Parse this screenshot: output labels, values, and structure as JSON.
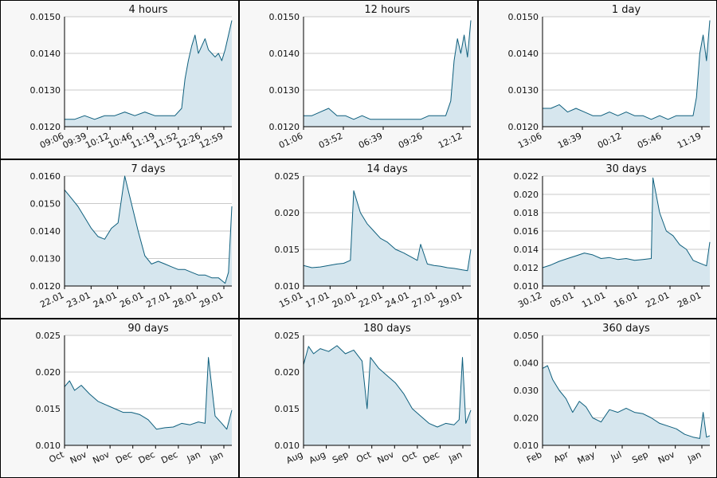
{
  "colors": {
    "line": "#0e5f7d",
    "fill": "#d6e6ee",
    "grid": "#c9c9c9",
    "panel_bg": "#f7f7f7"
  },
  "chart_data": [
    {
      "type": "area",
      "title": "4 hours",
      "ylim": [
        0.012,
        0.015
      ],
      "yticks": [
        0.012,
        0.013,
        0.014,
        0.015
      ],
      "yticklabels": [
        "0.0120",
        "0.0130",
        "0.0140",
        "0.0150"
      ],
      "xticklabels": [
        "09:06",
        "09:39",
        "10:12",
        "10:46",
        "11:19",
        "11:52",
        "12:26",
        "12:59"
      ],
      "grid": true,
      "x": [
        0,
        0.06,
        0.12,
        0.18,
        0.24,
        0.3,
        0.36,
        0.42,
        0.48,
        0.54,
        0.6,
        0.66,
        0.7,
        0.72,
        0.74,
        0.76,
        0.78,
        0.8,
        0.82,
        0.84,
        0.86,
        0.88,
        0.9,
        0.92,
        0.94,
        0.96,
        0.98,
        1.0
      ],
      "y": [
        0.0122,
        0.0122,
        0.0123,
        0.0122,
        0.0123,
        0.0123,
        0.0124,
        0.0123,
        0.0124,
        0.0123,
        0.0123,
        0.0123,
        0.0125,
        0.0133,
        0.0138,
        0.0142,
        0.0145,
        0.014,
        0.0142,
        0.0144,
        0.0141,
        0.014,
        0.0139,
        0.014,
        0.0138,
        0.0141,
        0.0145,
        0.0149
      ]
    },
    {
      "type": "area",
      "title": "12 hours",
      "ylim": [
        0.012,
        0.015
      ],
      "yticks": [
        0.012,
        0.013,
        0.014,
        0.015
      ],
      "yticklabels": [
        "0.0120",
        "0.0130",
        "0.0140",
        "0.0150"
      ],
      "xticklabels": [
        "01:06",
        "03:52",
        "06:39",
        "09:26",
        "12:12"
      ],
      "grid": true,
      "x": [
        0,
        0.05,
        0.1,
        0.15,
        0.2,
        0.25,
        0.3,
        0.35,
        0.4,
        0.45,
        0.5,
        0.55,
        0.6,
        0.65,
        0.7,
        0.75,
        0.8,
        0.85,
        0.88,
        0.9,
        0.92,
        0.94,
        0.96,
        0.98,
        1.0
      ],
      "y": [
        0.0123,
        0.0123,
        0.0124,
        0.0125,
        0.0123,
        0.0123,
        0.0122,
        0.0123,
        0.0122,
        0.0122,
        0.0122,
        0.0122,
        0.0122,
        0.0122,
        0.0122,
        0.0123,
        0.0123,
        0.0123,
        0.0127,
        0.0138,
        0.0144,
        0.014,
        0.0145,
        0.0139,
        0.0149
      ]
    },
    {
      "type": "area",
      "title": "1 day",
      "ylim": [
        0.012,
        0.015
      ],
      "yticks": [
        0.012,
        0.013,
        0.014,
        0.015
      ],
      "yticklabels": [
        "0.0120",
        "0.0130",
        "0.0140",
        "0.0150"
      ],
      "xticklabels": [
        "13:06",
        "18:39",
        "00:12",
        "05:46",
        "11:19"
      ],
      "grid": true,
      "x": [
        0,
        0.05,
        0.1,
        0.15,
        0.2,
        0.25,
        0.3,
        0.35,
        0.4,
        0.45,
        0.5,
        0.55,
        0.6,
        0.65,
        0.7,
        0.75,
        0.8,
        0.85,
        0.9,
        0.92,
        0.94,
        0.96,
        0.98,
        1.0
      ],
      "y": [
        0.0125,
        0.0125,
        0.0126,
        0.0124,
        0.0125,
        0.0124,
        0.0123,
        0.0123,
        0.0124,
        0.0123,
        0.0124,
        0.0123,
        0.0123,
        0.0122,
        0.0123,
        0.0122,
        0.0123,
        0.0123,
        0.0123,
        0.0128,
        0.014,
        0.0145,
        0.0138,
        0.0149
      ]
    },
    {
      "type": "area",
      "title": "7 days",
      "ylim": [
        0.012,
        0.016
      ],
      "yticks": [
        0.012,
        0.013,
        0.014,
        0.015,
        0.016
      ],
      "yticklabels": [
        "0.0120",
        "0.0130",
        "0.0140",
        "0.0150",
        "0.0160"
      ],
      "xticklabels": [
        "22.01",
        "23.01",
        "24.01",
        "26.01",
        "27.01",
        "28.01",
        "29.01"
      ],
      "grid": true,
      "x": [
        0,
        0.04,
        0.08,
        0.12,
        0.16,
        0.2,
        0.24,
        0.28,
        0.32,
        0.36,
        0.4,
        0.44,
        0.48,
        0.52,
        0.56,
        0.6,
        0.64,
        0.68,
        0.72,
        0.76,
        0.8,
        0.84,
        0.88,
        0.92,
        0.94,
        0.96,
        0.98,
        1.0
      ],
      "y": [
        0.0155,
        0.0152,
        0.0149,
        0.0145,
        0.0141,
        0.0138,
        0.0137,
        0.0141,
        0.0143,
        0.016,
        0.015,
        0.014,
        0.0131,
        0.0128,
        0.0129,
        0.0128,
        0.0127,
        0.0126,
        0.0126,
        0.0125,
        0.0124,
        0.0124,
        0.0123,
        0.0123,
        0.0122,
        0.0121,
        0.0125,
        0.0149
      ]
    },
    {
      "type": "area",
      "title": "14 days",
      "ylim": [
        0.01,
        0.025
      ],
      "yticks": [
        0.01,
        0.015,
        0.02,
        0.025
      ],
      "yticklabels": [
        "0.010",
        "0.015",
        "0.020",
        "0.025"
      ],
      "xticklabels": [
        "15.01",
        "17.01",
        "20.01",
        "22.01",
        "24.01",
        "27.01",
        "29.01"
      ],
      "grid": true,
      "x": [
        0,
        0.05,
        0.1,
        0.15,
        0.2,
        0.24,
        0.28,
        0.3,
        0.34,
        0.38,
        0.42,
        0.46,
        0.5,
        0.55,
        0.6,
        0.64,
        0.68,
        0.7,
        0.74,
        0.78,
        0.82,
        0.86,
        0.9,
        0.95,
        0.98,
        1.0
      ],
      "y": [
        0.0128,
        0.0125,
        0.0126,
        0.0128,
        0.013,
        0.0131,
        0.0135,
        0.023,
        0.02,
        0.0185,
        0.0175,
        0.0165,
        0.016,
        0.015,
        0.0145,
        0.014,
        0.0135,
        0.0157,
        0.013,
        0.0128,
        0.0127,
        0.0125,
        0.0124,
        0.0122,
        0.0121,
        0.015
      ]
    },
    {
      "type": "area",
      "title": "30 days",
      "ylim": [
        0.01,
        0.022
      ],
      "yticks": [
        0.01,
        0.012,
        0.014,
        0.016,
        0.018,
        0.02,
        0.022
      ],
      "yticklabels": [
        "0.010",
        "0.012",
        "0.014",
        "0.016",
        "0.018",
        "0.020",
        "0.022"
      ],
      "xticklabels": [
        "30.12",
        "05.01",
        "11.01",
        "16.01",
        "22.01",
        "28.01"
      ],
      "grid": true,
      "x": [
        0,
        0.05,
        0.1,
        0.15,
        0.2,
        0.25,
        0.3,
        0.35,
        0.4,
        0.45,
        0.5,
        0.55,
        0.6,
        0.65,
        0.66,
        0.7,
        0.74,
        0.78,
        0.82,
        0.86,
        0.9,
        0.94,
        0.98,
        1.0
      ],
      "y": [
        0.012,
        0.0123,
        0.0127,
        0.013,
        0.0133,
        0.0136,
        0.0134,
        0.013,
        0.0131,
        0.0129,
        0.013,
        0.0128,
        0.0129,
        0.013,
        0.0218,
        0.018,
        0.016,
        0.0155,
        0.0145,
        0.014,
        0.0128,
        0.0125,
        0.0122,
        0.0148
      ]
    },
    {
      "type": "area",
      "title": "90 days",
      "ylim": [
        0.01,
        0.025
      ],
      "yticks": [
        0.01,
        0.015,
        0.02,
        0.025
      ],
      "yticklabels": [
        "0.010",
        "0.015",
        "0.020",
        "0.025"
      ],
      "xticklabels": [
        "Oct",
        "Nov",
        "Nov",
        "Dec",
        "Dec",
        "Dec",
        "Jan",
        "Jan"
      ],
      "grid": true,
      "x": [
        0,
        0.03,
        0.06,
        0.1,
        0.15,
        0.2,
        0.25,
        0.3,
        0.35,
        0.4,
        0.45,
        0.5,
        0.55,
        0.6,
        0.65,
        0.7,
        0.75,
        0.8,
        0.84,
        0.86,
        0.9,
        0.94,
        0.97,
        1.0
      ],
      "y": [
        0.018,
        0.0188,
        0.0175,
        0.0182,
        0.017,
        0.016,
        0.0155,
        0.015,
        0.0145,
        0.0145,
        0.0142,
        0.0135,
        0.0122,
        0.0124,
        0.0125,
        0.013,
        0.0128,
        0.0132,
        0.013,
        0.022,
        0.014,
        0.013,
        0.0122,
        0.0148
      ]
    },
    {
      "type": "area",
      "title": "180 days",
      "ylim": [
        0.01,
        0.025
      ],
      "yticks": [
        0.01,
        0.015,
        0.02,
        0.025
      ],
      "yticklabels": [
        "0.010",
        "0.015",
        "0.020",
        "0.025"
      ],
      "xticklabels": [
        "Aug",
        "Aug",
        "Sep",
        "Oct",
        "Nov",
        "Oct",
        "Dec",
        "Jan"
      ],
      "grid": true,
      "x": [
        0,
        0.03,
        0.06,
        0.1,
        0.15,
        0.2,
        0.25,
        0.3,
        0.35,
        0.38,
        0.4,
        0.45,
        0.5,
        0.55,
        0.6,
        0.65,
        0.7,
        0.75,
        0.8,
        0.85,
        0.9,
        0.93,
        0.95,
        0.97,
        1.0
      ],
      "y": [
        0.021,
        0.0235,
        0.0225,
        0.0232,
        0.0228,
        0.0236,
        0.0225,
        0.023,
        0.0215,
        0.015,
        0.022,
        0.0205,
        0.0195,
        0.0185,
        0.017,
        0.015,
        0.014,
        0.013,
        0.0125,
        0.013,
        0.0128,
        0.0135,
        0.022,
        0.013,
        0.0148
      ]
    },
    {
      "type": "area",
      "title": "360 days",
      "ylim": [
        0.01,
        0.05
      ],
      "yticks": [
        0.01,
        0.02,
        0.03,
        0.04,
        0.05
      ],
      "yticklabels": [
        "0.010",
        "0.020",
        "0.030",
        "0.040",
        "0.050"
      ],
      "xticklabels": [
        "Feb",
        "Apr",
        "May",
        "Jul",
        "Sep",
        "Nov",
        "Jan"
      ],
      "grid": true,
      "x": [
        0,
        0.03,
        0.06,
        0.1,
        0.14,
        0.18,
        0.22,
        0.26,
        0.3,
        0.35,
        0.4,
        0.45,
        0.5,
        0.55,
        0.6,
        0.65,
        0.7,
        0.75,
        0.8,
        0.85,
        0.9,
        0.94,
        0.96,
        0.98,
        1.0
      ],
      "y": [
        0.038,
        0.039,
        0.034,
        0.03,
        0.027,
        0.022,
        0.026,
        0.024,
        0.02,
        0.0185,
        0.023,
        0.022,
        0.0235,
        0.022,
        0.0215,
        0.02,
        0.018,
        0.017,
        0.016,
        0.014,
        0.013,
        0.0125,
        0.022,
        0.013,
        0.0135
      ]
    }
  ]
}
